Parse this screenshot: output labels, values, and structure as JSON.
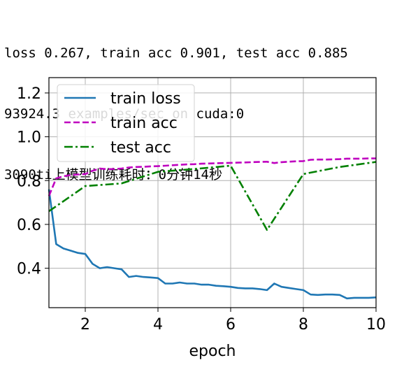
{
  "console": {
    "line1": "loss 0.267, train acc 0.901, test acc 0.885",
    "line2": "93924.3 examples/sec on cuda:0",
    "line3": "3090ti上模型训练耗时：0分钟14秒"
  },
  "chart_data": {
    "type": "line",
    "xlabel": "epoch",
    "ylabel": "",
    "xlim": [
      1,
      10
    ],
    "ylim": [
      0.22,
      1.27
    ],
    "xticks": [
      2,
      4,
      6,
      8,
      10
    ],
    "yticks": [
      0.4,
      0.6,
      0.8,
      1.0,
      1.2
    ],
    "xtick_labels": [
      "2",
      "4",
      "6",
      "8",
      "10"
    ],
    "ytick_labels": [
      "0.4",
      "0.6",
      "0.8",
      "1.0",
      "1.2"
    ],
    "grid": true,
    "legend_position": "upper-left",
    "series": [
      {
        "name": "train loss",
        "color": "#1f77b4",
        "style": "solid",
        "x": [
          1.0,
          1.2,
          1.4,
          1.6,
          1.8,
          2.0,
          2.2,
          2.4,
          2.6,
          2.8,
          3.0,
          3.2,
          3.4,
          3.6,
          3.8,
          4.0,
          4.2,
          4.4,
          4.6,
          4.8,
          5.0,
          5.2,
          5.4,
          5.6,
          5.8,
          6.0,
          6.2,
          6.4,
          6.6,
          6.8,
          7.0,
          7.2,
          7.4,
          7.6,
          7.8,
          8.0,
          8.2,
          8.4,
          8.6,
          8.8,
          9.0,
          9.2,
          9.4,
          9.6,
          9.8,
          10.0
        ],
        "values": [
          0.76,
          0.51,
          0.49,
          0.48,
          0.47,
          0.465,
          0.42,
          0.4,
          0.405,
          0.4,
          0.395,
          0.36,
          0.365,
          0.36,
          0.358,
          0.355,
          0.33,
          0.33,
          0.335,
          0.33,
          0.33,
          0.325,
          0.325,
          0.32,
          0.318,
          0.315,
          0.31,
          0.308,
          0.308,
          0.305,
          0.3,
          0.33,
          0.315,
          0.31,
          0.305,
          0.3,
          0.28,
          0.278,
          0.28,
          0.28,
          0.278,
          0.262,
          0.265,
          0.265,
          0.265,
          0.267
        ]
      },
      {
        "name": "train acc",
        "color": "#bf00bf",
        "style": "dashed",
        "x": [
          1.0,
          1.2,
          1.4,
          1.6,
          1.8,
          2.0,
          2.2,
          2.4,
          2.6,
          2.8,
          3.0,
          3.2,
          3.4,
          3.6,
          3.8,
          4.0,
          4.2,
          4.4,
          4.6,
          4.8,
          5.0,
          5.2,
          5.4,
          5.6,
          5.8,
          6.0,
          6.2,
          6.4,
          6.6,
          6.8,
          7.0,
          7.2,
          7.4,
          7.6,
          7.8,
          8.0,
          8.2,
          8.4,
          8.6,
          8.8,
          9.0,
          9.2,
          9.4,
          9.6,
          9.8,
          10.0
        ],
        "values": [
          0.73,
          0.81,
          0.82,
          0.825,
          0.828,
          0.83,
          0.845,
          0.855,
          0.852,
          0.853,
          0.855,
          0.86,
          0.862,
          0.863,
          0.865,
          0.866,
          0.868,
          0.87,
          0.872,
          0.874,
          0.875,
          0.877,
          0.878,
          0.879,
          0.88,
          0.881,
          0.882,
          0.883,
          0.884,
          0.885,
          0.886,
          0.88,
          0.884,
          0.886,
          0.888,
          0.889,
          0.895,
          0.896,
          0.896,
          0.897,
          0.898,
          0.9,
          0.9,
          0.9,
          0.901,
          0.901
        ]
      },
      {
        "name": "test acc",
        "color": "#008000",
        "style": "dashdot",
        "x": [
          1,
          2,
          3,
          4,
          5,
          6,
          7,
          8,
          9,
          10
        ],
        "values": [
          0.66,
          0.775,
          0.787,
          0.84,
          0.853,
          0.868,
          0.575,
          0.83,
          0.862,
          0.885
        ]
      }
    ]
  }
}
